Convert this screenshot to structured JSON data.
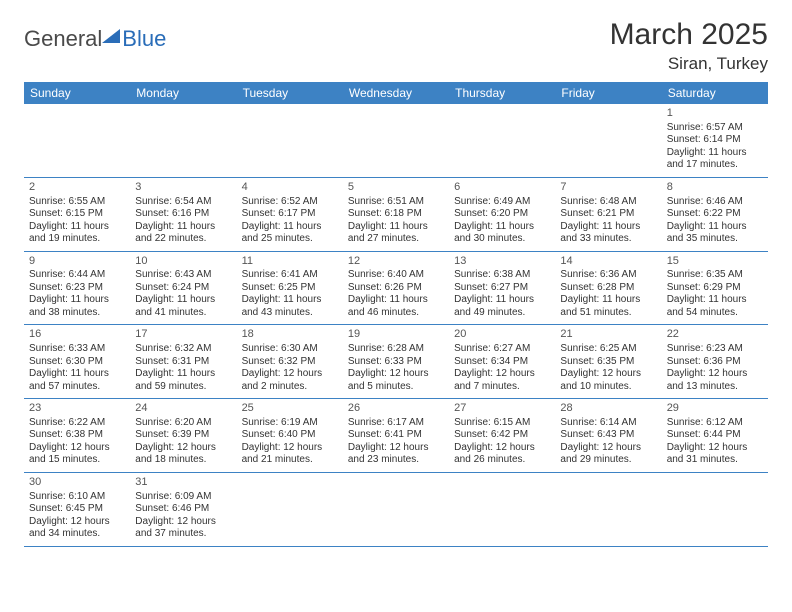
{
  "logo": {
    "text1": "General",
    "text2": "Blue"
  },
  "title": "March 2025",
  "location": "Siran, Turkey",
  "colors": {
    "header_bg": "#3d82c4",
    "header_text": "#ffffff",
    "border": "#3d82c4",
    "text": "#333333",
    "logo_gray": "#4a4a4a",
    "logo_blue": "#2a6db8",
    "page_bg": "#ffffff"
  },
  "daynames": [
    "Sunday",
    "Monday",
    "Tuesday",
    "Wednesday",
    "Thursday",
    "Friday",
    "Saturday"
  ],
  "weeks": [
    [
      null,
      null,
      null,
      null,
      null,
      null,
      {
        "n": "1",
        "sr": "Sunrise: 6:57 AM",
        "ss": "Sunset: 6:14 PM",
        "dl1": "Daylight: 11 hours",
        "dl2": "and 17 minutes."
      }
    ],
    [
      {
        "n": "2",
        "sr": "Sunrise: 6:55 AM",
        "ss": "Sunset: 6:15 PM",
        "dl1": "Daylight: 11 hours",
        "dl2": "and 19 minutes."
      },
      {
        "n": "3",
        "sr": "Sunrise: 6:54 AM",
        "ss": "Sunset: 6:16 PM",
        "dl1": "Daylight: 11 hours",
        "dl2": "and 22 minutes."
      },
      {
        "n": "4",
        "sr": "Sunrise: 6:52 AM",
        "ss": "Sunset: 6:17 PM",
        "dl1": "Daylight: 11 hours",
        "dl2": "and 25 minutes."
      },
      {
        "n": "5",
        "sr": "Sunrise: 6:51 AM",
        "ss": "Sunset: 6:18 PM",
        "dl1": "Daylight: 11 hours",
        "dl2": "and 27 minutes."
      },
      {
        "n": "6",
        "sr": "Sunrise: 6:49 AM",
        "ss": "Sunset: 6:20 PM",
        "dl1": "Daylight: 11 hours",
        "dl2": "and 30 minutes."
      },
      {
        "n": "7",
        "sr": "Sunrise: 6:48 AM",
        "ss": "Sunset: 6:21 PM",
        "dl1": "Daylight: 11 hours",
        "dl2": "and 33 minutes."
      },
      {
        "n": "8",
        "sr": "Sunrise: 6:46 AM",
        "ss": "Sunset: 6:22 PM",
        "dl1": "Daylight: 11 hours",
        "dl2": "and 35 minutes."
      }
    ],
    [
      {
        "n": "9",
        "sr": "Sunrise: 6:44 AM",
        "ss": "Sunset: 6:23 PM",
        "dl1": "Daylight: 11 hours",
        "dl2": "and 38 minutes."
      },
      {
        "n": "10",
        "sr": "Sunrise: 6:43 AM",
        "ss": "Sunset: 6:24 PM",
        "dl1": "Daylight: 11 hours",
        "dl2": "and 41 minutes."
      },
      {
        "n": "11",
        "sr": "Sunrise: 6:41 AM",
        "ss": "Sunset: 6:25 PM",
        "dl1": "Daylight: 11 hours",
        "dl2": "and 43 minutes."
      },
      {
        "n": "12",
        "sr": "Sunrise: 6:40 AM",
        "ss": "Sunset: 6:26 PM",
        "dl1": "Daylight: 11 hours",
        "dl2": "and 46 minutes."
      },
      {
        "n": "13",
        "sr": "Sunrise: 6:38 AM",
        "ss": "Sunset: 6:27 PM",
        "dl1": "Daylight: 11 hours",
        "dl2": "and 49 minutes."
      },
      {
        "n": "14",
        "sr": "Sunrise: 6:36 AM",
        "ss": "Sunset: 6:28 PM",
        "dl1": "Daylight: 11 hours",
        "dl2": "and 51 minutes."
      },
      {
        "n": "15",
        "sr": "Sunrise: 6:35 AM",
        "ss": "Sunset: 6:29 PM",
        "dl1": "Daylight: 11 hours",
        "dl2": "and 54 minutes."
      }
    ],
    [
      {
        "n": "16",
        "sr": "Sunrise: 6:33 AM",
        "ss": "Sunset: 6:30 PM",
        "dl1": "Daylight: 11 hours",
        "dl2": "and 57 minutes."
      },
      {
        "n": "17",
        "sr": "Sunrise: 6:32 AM",
        "ss": "Sunset: 6:31 PM",
        "dl1": "Daylight: 11 hours",
        "dl2": "and 59 minutes."
      },
      {
        "n": "18",
        "sr": "Sunrise: 6:30 AM",
        "ss": "Sunset: 6:32 PM",
        "dl1": "Daylight: 12 hours",
        "dl2": "and 2 minutes."
      },
      {
        "n": "19",
        "sr": "Sunrise: 6:28 AM",
        "ss": "Sunset: 6:33 PM",
        "dl1": "Daylight: 12 hours",
        "dl2": "and 5 minutes."
      },
      {
        "n": "20",
        "sr": "Sunrise: 6:27 AM",
        "ss": "Sunset: 6:34 PM",
        "dl1": "Daylight: 12 hours",
        "dl2": "and 7 minutes."
      },
      {
        "n": "21",
        "sr": "Sunrise: 6:25 AM",
        "ss": "Sunset: 6:35 PM",
        "dl1": "Daylight: 12 hours",
        "dl2": "and 10 minutes."
      },
      {
        "n": "22",
        "sr": "Sunrise: 6:23 AM",
        "ss": "Sunset: 6:36 PM",
        "dl1": "Daylight: 12 hours",
        "dl2": "and 13 minutes."
      }
    ],
    [
      {
        "n": "23",
        "sr": "Sunrise: 6:22 AM",
        "ss": "Sunset: 6:38 PM",
        "dl1": "Daylight: 12 hours",
        "dl2": "and 15 minutes."
      },
      {
        "n": "24",
        "sr": "Sunrise: 6:20 AM",
        "ss": "Sunset: 6:39 PM",
        "dl1": "Daylight: 12 hours",
        "dl2": "and 18 minutes."
      },
      {
        "n": "25",
        "sr": "Sunrise: 6:19 AM",
        "ss": "Sunset: 6:40 PM",
        "dl1": "Daylight: 12 hours",
        "dl2": "and 21 minutes."
      },
      {
        "n": "26",
        "sr": "Sunrise: 6:17 AM",
        "ss": "Sunset: 6:41 PM",
        "dl1": "Daylight: 12 hours",
        "dl2": "and 23 minutes."
      },
      {
        "n": "27",
        "sr": "Sunrise: 6:15 AM",
        "ss": "Sunset: 6:42 PM",
        "dl1": "Daylight: 12 hours",
        "dl2": "and 26 minutes."
      },
      {
        "n": "28",
        "sr": "Sunrise: 6:14 AM",
        "ss": "Sunset: 6:43 PM",
        "dl1": "Daylight: 12 hours",
        "dl2": "and 29 minutes."
      },
      {
        "n": "29",
        "sr": "Sunrise: 6:12 AM",
        "ss": "Sunset: 6:44 PM",
        "dl1": "Daylight: 12 hours",
        "dl2": "and 31 minutes."
      }
    ],
    [
      {
        "n": "30",
        "sr": "Sunrise: 6:10 AM",
        "ss": "Sunset: 6:45 PM",
        "dl1": "Daylight: 12 hours",
        "dl2": "and 34 minutes."
      },
      {
        "n": "31",
        "sr": "Sunrise: 6:09 AM",
        "ss": "Sunset: 6:46 PM",
        "dl1": "Daylight: 12 hours",
        "dl2": "and 37 minutes."
      },
      null,
      null,
      null,
      null,
      null
    ]
  ]
}
